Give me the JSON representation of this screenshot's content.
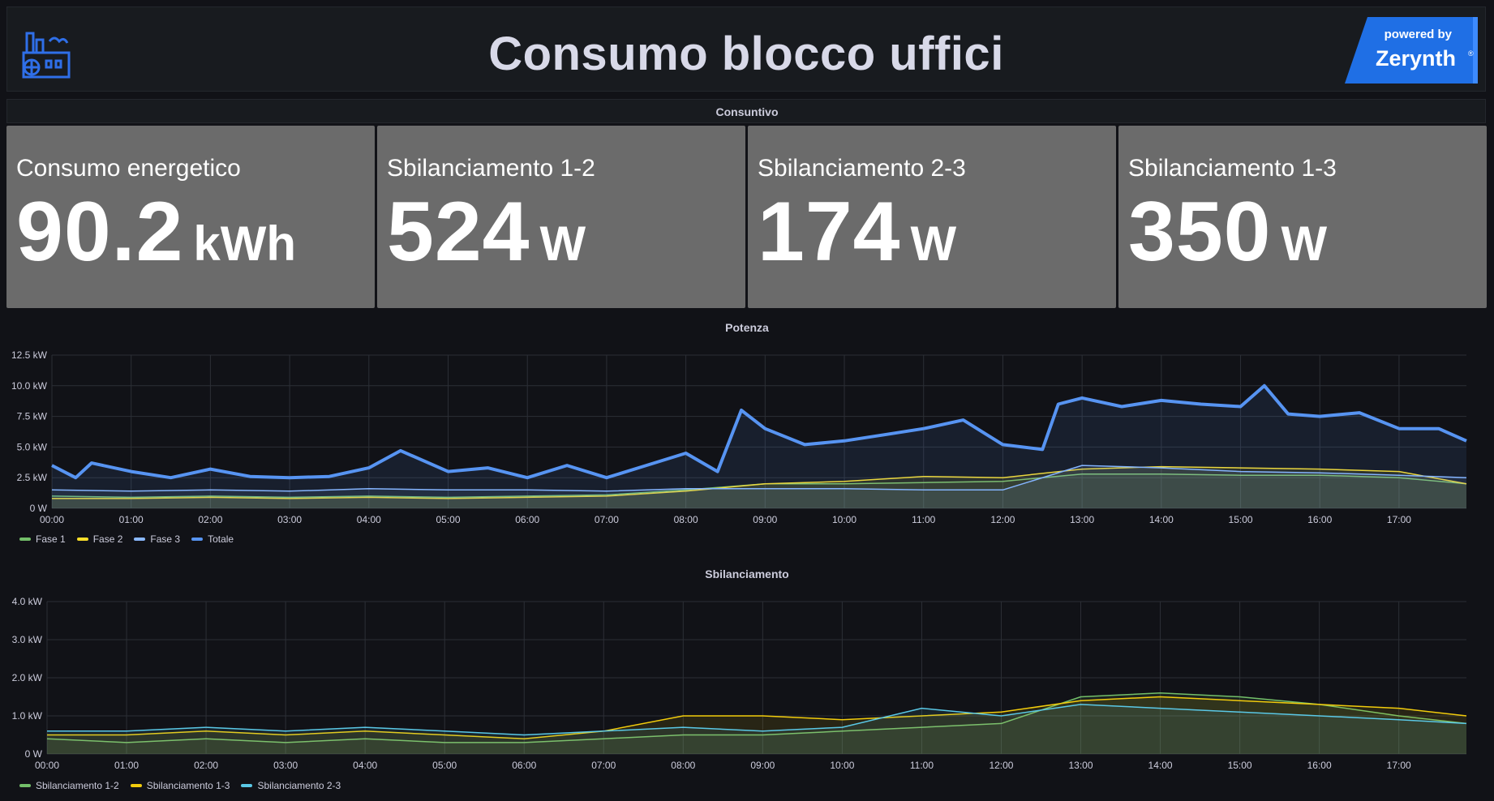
{
  "header": {
    "title": "Consumo blocco uffici",
    "badge_top": "powered by",
    "badge_brand": "Zerynth",
    "badge_reg": "®",
    "logo_icon": "factory-icon"
  },
  "section": {
    "title": "Consuntivo"
  },
  "stats": [
    {
      "title": "Consumo energetico",
      "value": "90.2",
      "unit": "kWh"
    },
    {
      "title": "Sbilanciamento 1-2",
      "value": "524",
      "unit": "W"
    },
    {
      "title": "Sbilanciamento 2-3",
      "value": "174",
      "unit": "W"
    },
    {
      "title": "Sbilanciamento 1-3",
      "value": "350",
      "unit": "W"
    }
  ],
  "colors": {
    "fase1": "#73bf69",
    "fase2": "#fade2a",
    "fase3": "#8ab8ff",
    "totale": "#5794f2",
    "sb12": "#73bf69",
    "sb13": "#f2cc0c",
    "sb23": "#5ac8e6",
    "stat_bg": "#6b6b6b",
    "badge_bg": "#1f6fe5"
  },
  "chart_data": [
    {
      "type": "line",
      "title": "Potenza",
      "x_ticks": [
        "00:00",
        "01:00",
        "02:00",
        "03:00",
        "04:00",
        "05:00",
        "06:00",
        "07:00",
        "08:00",
        "09:00",
        "10:00",
        "11:00",
        "12:00",
        "13:00",
        "14:00",
        "15:00",
        "16:00",
        "17:00"
      ],
      "y_ticks": [
        "0 W",
        "2.5 kW",
        "5.0 kW",
        "7.5 kW",
        "10.0 kW",
        "12.5 kW"
      ],
      "ylim": [
        0,
        12.5
      ],
      "xlim": [
        0,
        17.85
      ],
      "unit": "kW",
      "series": [
        {
          "name": "Fase 1",
          "color": "#73bf69",
          "points": [
            [
              0,
              1.0
            ],
            [
              1,
              0.9
            ],
            [
              2,
              1.0
            ],
            [
              3,
              0.9
            ],
            [
              4,
              1.0
            ],
            [
              5,
              0.9
            ],
            [
              6,
              1.0
            ],
            [
              7,
              1.1
            ],
            [
              8,
              1.5
            ],
            [
              9,
              2.0
            ],
            [
              10,
              2.0
            ],
            [
              11,
              2.1
            ],
            [
              12,
              2.2
            ],
            [
              13,
              2.8
            ],
            [
              14,
              2.8
            ],
            [
              15,
              2.7
            ],
            [
              16,
              2.7
            ],
            [
              17,
              2.5
            ],
            [
              17.85,
              2.0
            ]
          ]
        },
        {
          "name": "Fase 2",
          "color": "#fade2a",
          "points": [
            [
              0,
              0.8
            ],
            [
              1,
              0.8
            ],
            [
              2,
              0.9
            ],
            [
              3,
              0.8
            ],
            [
              4,
              0.9
            ],
            [
              5,
              0.8
            ],
            [
              6,
              0.9
            ],
            [
              7,
              1.0
            ],
            [
              8,
              1.4
            ],
            [
              9,
              2.0
            ],
            [
              10,
              2.2
            ],
            [
              11,
              2.6
            ],
            [
              12,
              2.5
            ],
            [
              13,
              3.2
            ],
            [
              14,
              3.4
            ],
            [
              15,
              3.3
            ],
            [
              16,
              3.2
            ],
            [
              17,
              3.0
            ],
            [
              17.85,
              2.0
            ]
          ]
        },
        {
          "name": "Fase 3",
          "color": "#8ab8ff",
          "points": [
            [
              0,
              1.5
            ],
            [
              1,
              1.4
            ],
            [
              2,
              1.5
            ],
            [
              3,
              1.4
            ],
            [
              4,
              1.6
            ],
            [
              5,
              1.5
            ],
            [
              6,
              1.5
            ],
            [
              7,
              1.4
            ],
            [
              8,
              1.6
            ],
            [
              9,
              1.6
            ],
            [
              10,
              1.6
            ],
            [
              11,
              1.5
            ],
            [
              12,
              1.5
            ],
            [
              13,
              3.5
            ],
            [
              14,
              3.3
            ],
            [
              15,
              3.0
            ],
            [
              16,
              2.9
            ],
            [
              17,
              2.7
            ],
            [
              17.85,
              2.5
            ]
          ]
        },
        {
          "name": "Totale",
          "color": "#5794f2",
          "points": [
            [
              0,
              3.5
            ],
            [
              0.3,
              2.5
            ],
            [
              0.5,
              3.7
            ],
            [
              1,
              3.0
            ],
            [
              1.5,
              2.5
            ],
            [
              2,
              3.2
            ],
            [
              2.5,
              2.6
            ],
            [
              3,
              2.5
            ],
            [
              3.5,
              2.6
            ],
            [
              4,
              3.3
            ],
            [
              4.4,
              4.7
            ],
            [
              5,
              3.0
            ],
            [
              5.5,
              3.3
            ],
            [
              6,
              2.5
            ],
            [
              6.5,
              3.5
            ],
            [
              7,
              2.5
            ],
            [
              7.5,
              3.5
            ],
            [
              8,
              4.5
            ],
            [
              8.4,
              3.0
            ],
            [
              8.7,
              8.0
            ],
            [
              9,
              6.5
            ],
            [
              9.5,
              5.2
            ],
            [
              10,
              5.5
            ],
            [
              10.5,
              6.0
            ],
            [
              11,
              6.5
            ],
            [
              11.5,
              7.2
            ],
            [
              12,
              5.2
            ],
            [
              12.5,
              4.8
            ],
            [
              12.7,
              8.5
            ],
            [
              13,
              9.0
            ],
            [
              13.5,
              8.3
            ],
            [
              14,
              8.8
            ],
            [
              14.5,
              8.5
            ],
            [
              15,
              8.3
            ],
            [
              15.3,
              10.0
            ],
            [
              15.6,
              7.7
            ],
            [
              16,
              7.5
            ],
            [
              16.5,
              7.8
            ],
            [
              17,
              6.5
            ],
            [
              17.5,
              6.5
            ],
            [
              17.85,
              5.5
            ]
          ]
        }
      ],
      "legend": [
        "Fase 1",
        "Fase 2",
        "Fase 3",
        "Totale"
      ]
    },
    {
      "type": "line",
      "title": "Sbilanciamento",
      "x_ticks": [
        "00:00",
        "01:00",
        "02:00",
        "03:00",
        "04:00",
        "05:00",
        "06:00",
        "07:00",
        "08:00",
        "09:00",
        "10:00",
        "11:00",
        "12:00",
        "13:00",
        "14:00",
        "15:00",
        "16:00",
        "17:00"
      ],
      "y_ticks": [
        "0 W",
        "1.0 kW",
        "2.0 kW",
        "3.0 kW",
        "4.0 kW"
      ],
      "ylim": [
        0,
        4.0
      ],
      "xlim": [
        0,
        17.85
      ],
      "unit": "kW",
      "series": [
        {
          "name": "Sbilanciamento 1-2",
          "color": "#73bf69",
          "points": [
            [
              0,
              0.4
            ],
            [
              1,
              0.3
            ],
            [
              2,
              0.4
            ],
            [
              3,
              0.3
            ],
            [
              4,
              0.4
            ],
            [
              5,
              0.3
            ],
            [
              6,
              0.3
            ],
            [
              7,
              0.4
            ],
            [
              8,
              0.5
            ],
            [
              9,
              0.5
            ],
            [
              10,
              0.6
            ],
            [
              11,
              0.7
            ],
            [
              12,
              0.8
            ],
            [
              13,
              1.5
            ],
            [
              14,
              1.6
            ],
            [
              15,
              1.5
            ],
            [
              16,
              1.3
            ],
            [
              17,
              1.0
            ],
            [
              17.85,
              0.8
            ]
          ]
        },
        {
          "name": "Sbilanciamento 1-3",
          "color": "#f2cc0c",
          "points": [
            [
              0,
              0.5
            ],
            [
              1,
              0.5
            ],
            [
              2,
              0.6
            ],
            [
              3,
              0.5
            ],
            [
              4,
              0.6
            ],
            [
              5,
              0.5
            ],
            [
              6,
              0.4
            ],
            [
              7,
              0.6
            ],
            [
              8,
              1.0
            ],
            [
              9,
              1.0
            ],
            [
              10,
              0.9
            ],
            [
              11,
              1.0
            ],
            [
              12,
              1.1
            ],
            [
              13,
              1.4
            ],
            [
              14,
              1.5
            ],
            [
              15,
              1.4
            ],
            [
              16,
              1.3
            ],
            [
              17,
              1.2
            ],
            [
              17.85,
              1.0
            ]
          ]
        },
        {
          "name": "Sbilanciamento 2-3",
          "color": "#5ac8e6",
          "points": [
            [
              0,
              0.6
            ],
            [
              1,
              0.6
            ],
            [
              2,
              0.7
            ],
            [
              3,
              0.6
            ],
            [
              4,
              0.7
            ],
            [
              5,
              0.6
            ],
            [
              6,
              0.5
            ],
            [
              7,
              0.6
            ],
            [
              8,
              0.7
            ],
            [
              9,
              0.6
            ],
            [
              10,
              0.7
            ],
            [
              11,
              1.2
            ],
            [
              12,
              1.0
            ],
            [
              13,
              1.3
            ],
            [
              14,
              1.2
            ],
            [
              15,
              1.1
            ],
            [
              16,
              1.0
            ],
            [
              17,
              0.9
            ],
            [
              17.85,
              0.8
            ]
          ]
        }
      ],
      "legend": [
        "Sbilanciamento 1-2",
        "Sbilanciamento 1-3",
        "Sbilanciamento 2-3"
      ]
    }
  ]
}
